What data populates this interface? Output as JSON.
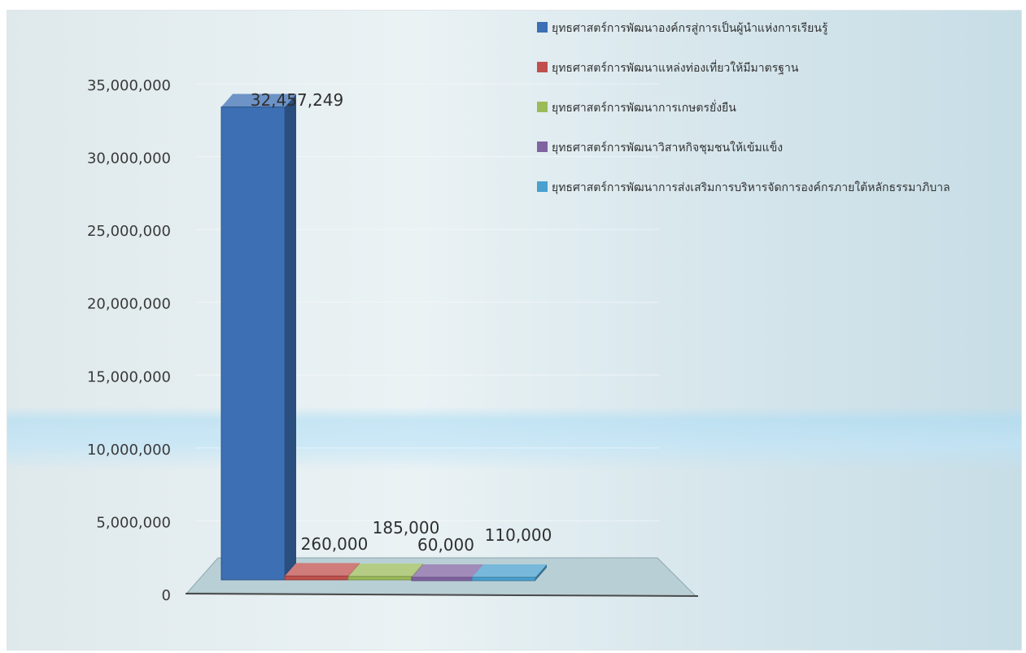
{
  "chart_data": {
    "type": "bar",
    "title": "",
    "xlabel": "",
    "ylabel": "",
    "ylim": [
      0,
      35000000
    ],
    "y_ticks": [
      "0",
      "5,000,000",
      "10,000,000",
      "15,000,000",
      "20,000,000",
      "25,000,000",
      "30,000,000",
      "35,000,000"
    ],
    "legend_position": "top-right",
    "series": [
      {
        "name": "ยุทธศาสตร์การพัฒนาองค์กรสู่การเป็นผู้นำแห่งการเรียนรู้",
        "value": 32457249,
        "label": "32,457,249",
        "color": "#3c6fb4"
      },
      {
        "name": "ยุทธศาสตร์การพัฒนาแหล่งท่องเที่ยวให้มีมาตรฐาน",
        "value": 260000,
        "label": "260,000",
        "color": "#c0504d"
      },
      {
        "name": "ยุทธศาสตร์การพัฒนาการเกษตรยั่งยืน",
        "value": 185000,
        "label": "185,000",
        "color": "#9bbb59"
      },
      {
        "name": "ยุทธศาสตร์การพัฒนาวิสาหกิจชุมชนให้เข้มแข็ง",
        "value": 60000,
        "label": "60,000",
        "color": "#8064a2"
      },
      {
        "name": "ยุทธศาสตร์การพัฒนาการส่งเสริมการบริหารจัดการองค์กรภายใต้หลักธรรมาภิบาล",
        "value": 110000,
        "label": "110,000",
        "color": "#4aa0cf"
      }
    ]
  }
}
